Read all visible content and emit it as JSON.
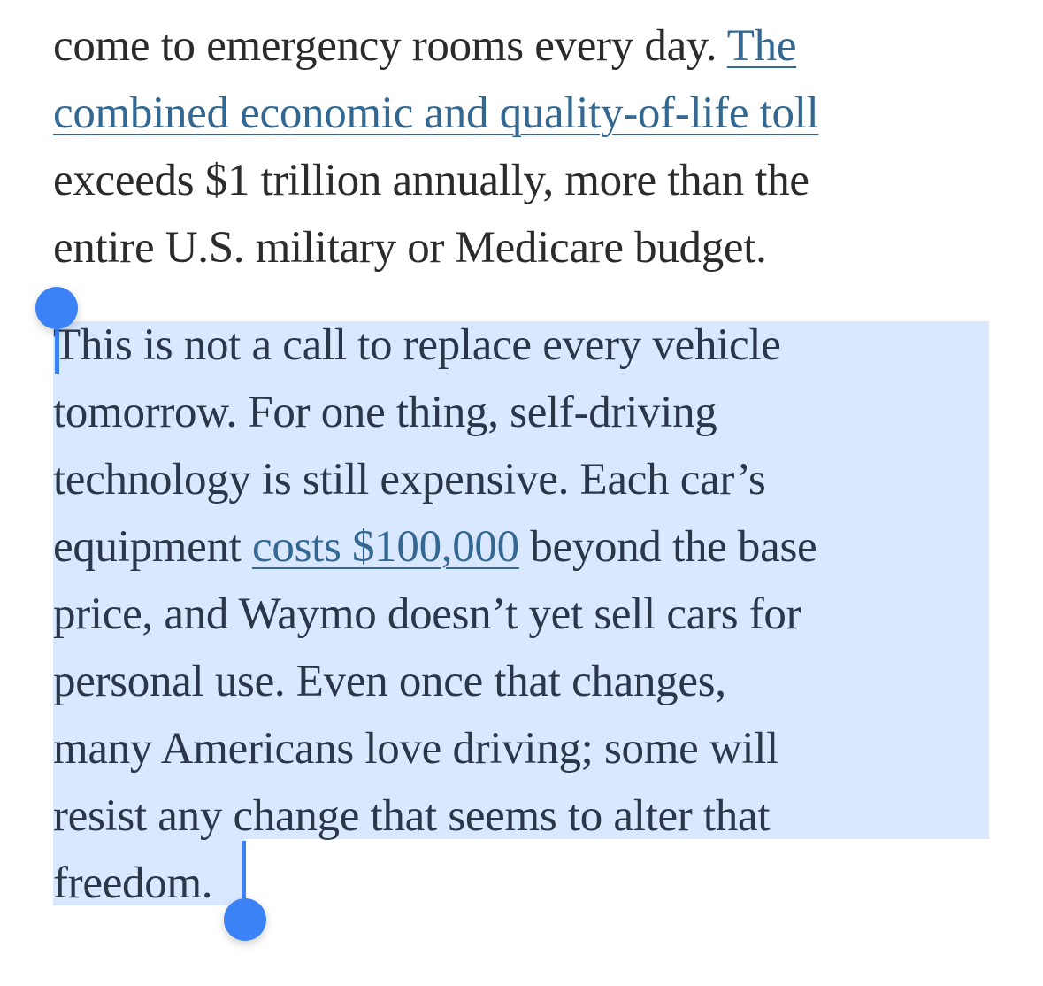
{
  "article": {
    "paragraph1": {
      "line1_text": "come to emergency rooms every day. ",
      "line1_link": "The",
      "line2_link": "combined economic and quality-of-life toll",
      "line3": "exceeds $1 trillion annually, more than the",
      "line4": "entire U.S. military or Medicare budget."
    },
    "paragraph2": {
      "line1": "This is not a call to replace every vehicle",
      "line2": "tomorrow. For one thing, self-driving",
      "line3": "technology is still expensive. Each car’s",
      "line4_before": "equipment ",
      "line4_link": "costs $100,000",
      "line4_after": " beyond the base",
      "line5": "price, and Waymo doesn’t yet sell cars for",
      "line6": "personal use. Even once that changes,",
      "line7": "many Americans love driving; some will",
      "line8": "resist any change that seems to alter that",
      "line9": "freedom."
    }
  },
  "colors": {
    "body_text": "#2b2b2b",
    "link": "#326891",
    "selection_highlight": "#cce0ff",
    "selection_handle": "#3b82f6"
  }
}
